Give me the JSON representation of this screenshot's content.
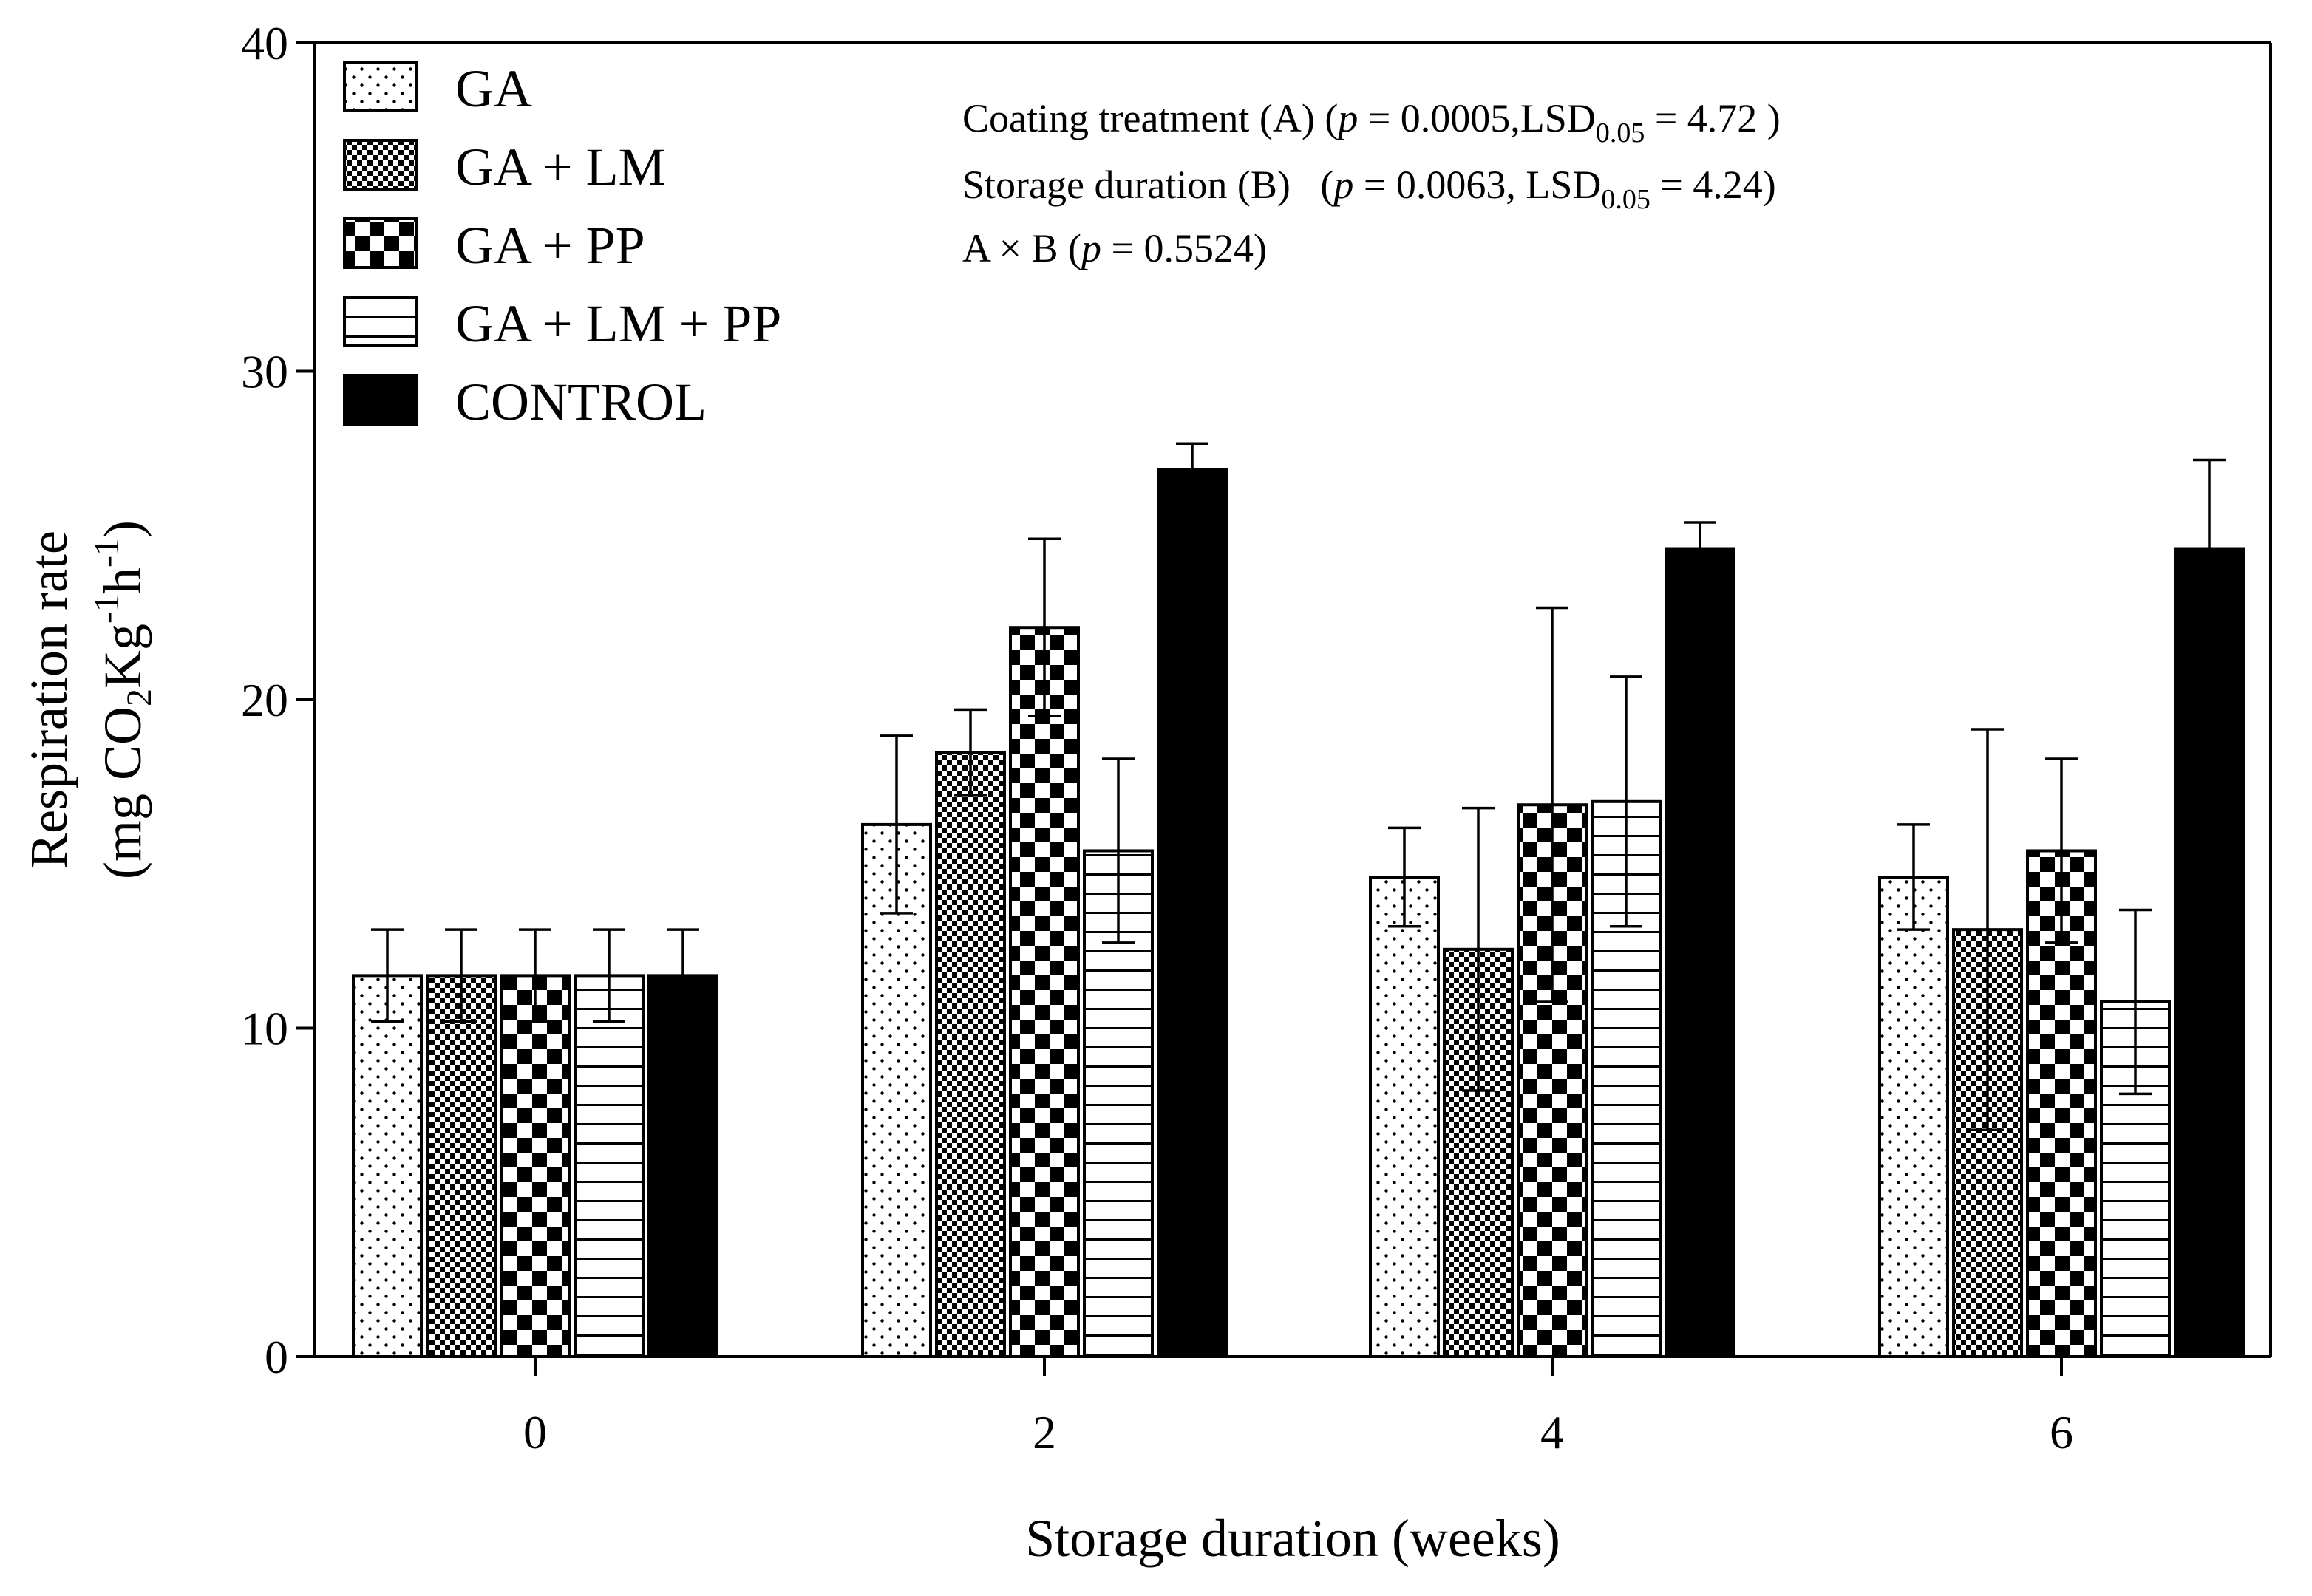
{
  "chart_data": {
    "type": "bar",
    "xlabel": "Storage duration (weeks)",
    "ylabel_line1": "Respiration rate",
    "ylabel_line2": {
      "prefix": "(mg CO",
      "co2_sub": "2",
      "kg": "Kg",
      "kg_sup": "-1",
      "h": "h",
      "h_sup": "-1",
      "suffix": ")"
    },
    "categories": [
      "0",
      "2",
      "4",
      "6"
    ],
    "ylim": [
      0,
      40
    ],
    "yticks": [
      0,
      10,
      20,
      30,
      40
    ],
    "grid": false,
    "legend_position": "top-left",
    "series": [
      {
        "name": "GA",
        "pattern": "dots",
        "values": [
          11.6,
          16.2,
          14.6,
          14.6
        ],
        "errors": [
          1.4,
          2.7,
          1.5,
          1.6
        ]
      },
      {
        "name": "GA + LM",
        "pattern": "fine-check",
        "values": [
          11.6,
          18.4,
          12.4,
          13.0
        ],
        "errors": [
          1.4,
          1.3,
          4.3,
          6.1
        ]
      },
      {
        "name": "GA + PP",
        "pattern": "checker",
        "values": [
          11.6,
          22.2,
          16.8,
          15.4
        ],
        "errors": [
          1.4,
          2.7,
          6.0,
          2.8
        ]
      },
      {
        "name": "GA + LM + PP",
        "pattern": "horizontal-lines",
        "values": [
          11.6,
          15.4,
          16.9,
          10.8
        ],
        "errors": [
          1.4,
          2.8,
          3.8,
          2.8
        ]
      },
      {
        "name": "CONTROL",
        "pattern": "solid",
        "values": [
          11.6,
          27.0,
          24.6,
          24.6
        ],
        "errors": [
          1.4,
          0.8,
          0.8,
          2.7
        ]
      }
    ],
    "annotations": {
      "line1": {
        "prefix": "Coating treatment (A) (",
        "p": "p",
        "mid": " = 0.0005,LSD",
        "sub": "0.05",
        "suffix": " = 4.72 )"
      },
      "line2": {
        "prefix": "Storage duration (B)   (",
        "p": "p",
        "mid": " = 0.0063, LSD",
        "sub": "0.05",
        "suffix": " = 4.24)"
      },
      "line3": {
        "prefix": "A × B (",
        "p": "p",
        "suffix": " = 0.5524)"
      }
    }
  }
}
